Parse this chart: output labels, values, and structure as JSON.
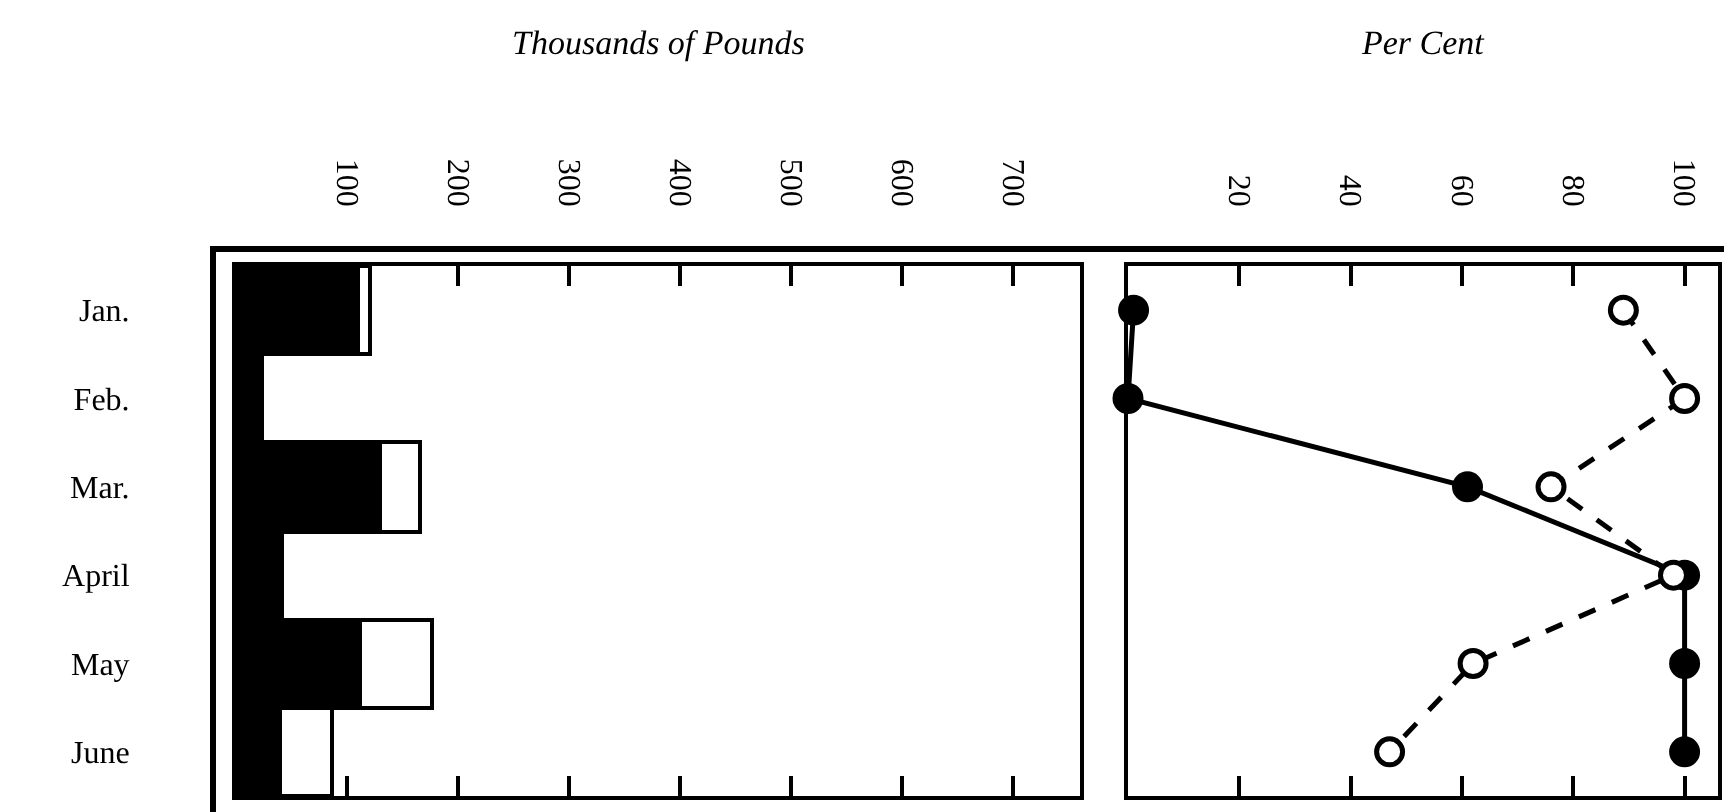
{
  "chart_data": [
    {
      "type": "bar",
      "orientation": "horizontal",
      "stacked": true,
      "xlabel": "Thousands of Pounds",
      "categories": [
        "Jan.",
        "Feb.",
        "Mar.",
        "April",
        "May",
        "June"
      ],
      "series": [
        {
          "color": "#000000",
          "values": [
            110,
            23,
            130,
            41,
            112,
            40
          ]
        },
        {
          "color": "#ffffff",
          "values": [
            11,
            null,
            36,
            null,
            65,
            46
          ]
        }
      ],
      "xlim": [
        0,
        760
      ],
      "xticks": [
        100,
        200,
        300,
        400,
        500,
        600,
        700
      ],
      "grid": false,
      "legend": false
    },
    {
      "type": "line",
      "xlabel": "Per Cent",
      "categories": [
        null,
        null,
        null,
        null,
        null,
        null
      ],
      "orientation": "horizontal",
      "series": [
        {
          "color": "#000000",
          "line_style": "solid",
          "values": [
            1,
            0,
            61,
            100,
            100,
            100
          ]
        },
        {
          "color": "#000000",
          "line_style": "dashed",
          "values": [
            89,
            100,
            76,
            98,
            62,
            47
          ]
        }
      ],
      "xlim": [
        0,
        106
      ],
      "xticks": [
        20,
        40,
        60,
        80,
        100
      ],
      "marker": "circle",
      "grid": false,
      "legend": false,
      "tick_labels": "x"
    }
  ]
}
